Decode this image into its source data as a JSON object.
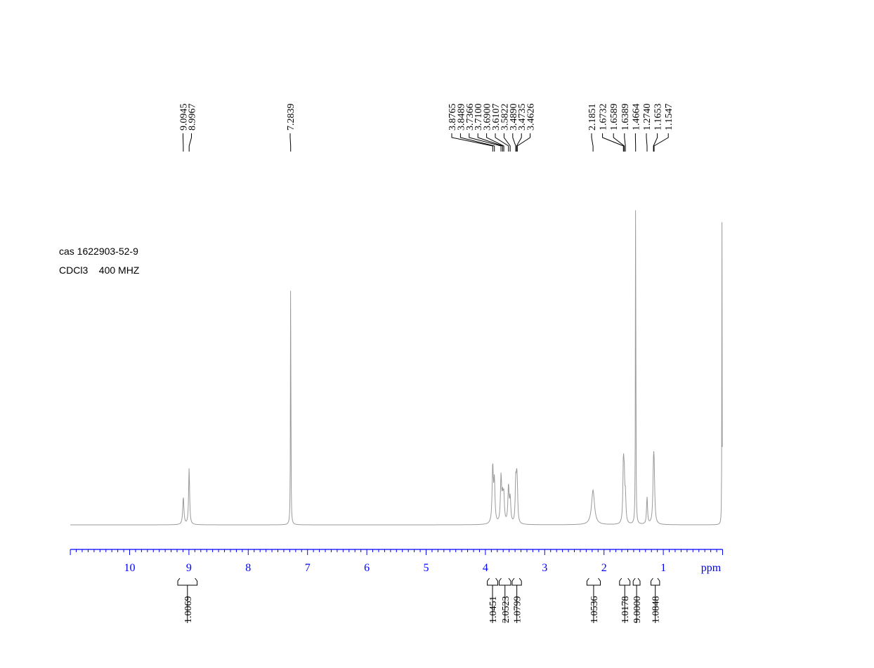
{
  "sample_info": {
    "line1": "cas 1622903-52-9",
    "line2": "CDCl3    400 MHZ"
  },
  "chart_data": {
    "type": "line",
    "title": "",
    "xlabel": "ppm",
    "ylabel": "",
    "x_direction": "reversed",
    "xlim": [
      11.0,
      0.0
    ],
    "ylim": [
      0,
      100
    ],
    "x_major_ticks": [
      10,
      9,
      8,
      7,
      6,
      5,
      4,
      3,
      2,
      1
    ],
    "x_tick_labels": [
      "10",
      "9",
      "8",
      "7",
      "6",
      "5",
      "4",
      "3",
      "2",
      "1"
    ],
    "x_minor_step": 0.1,
    "axis_color": "#0000ff",
    "trace_color": "#9a9a9a",
    "peak_labels": [
      "9.0945",
      "8.9967",
      "7.2839",
      "3.8765",
      "3.8489",
      "3.7366",
      "3.7100",
      "3.6900",
      "3.6107",
      "3.5822",
      "3.4890",
      "3.4735",
      "3.4626",
      "2.1851",
      "1.6732",
      "1.6589",
      "1.6389",
      "1.4664",
      "1.2740",
      "1.1653",
      "1.1547"
    ],
    "peaks": [
      {
        "ppm": 9.0945,
        "height": 7.5,
        "width": 0.012
      },
      {
        "ppm": 8.9967,
        "height": 15.5,
        "width": 0.01
      },
      {
        "ppm": 7.2839,
        "height": 75,
        "width": 0.004
      },
      {
        "ppm": 3.8765,
        "height": 15.5,
        "width": 0.012
      },
      {
        "ppm": 3.8489,
        "height": 11,
        "width": 0.012
      },
      {
        "ppm": 3.7366,
        "height": 12.5,
        "width": 0.012
      },
      {
        "ppm": 3.71,
        "height": 6,
        "width": 0.012
      },
      {
        "ppm": 3.69,
        "height": 7,
        "width": 0.012
      },
      {
        "ppm": 3.6107,
        "height": 10,
        "width": 0.012
      },
      {
        "ppm": 3.5822,
        "height": 6.5,
        "width": 0.012
      },
      {
        "ppm": 3.489,
        "height": 10.5,
        "width": 0.01
      },
      {
        "ppm": 3.4735,
        "height": 9,
        "width": 0.01
      },
      {
        "ppm": 3.4626,
        "height": 7.5,
        "width": 0.01
      },
      {
        "ppm": 2.1851,
        "height": 9.5,
        "width": 0.03
      },
      {
        "ppm": 1.6732,
        "height": 15.5,
        "width": 0.01
      },
      {
        "ppm": 1.6589,
        "height": 11,
        "width": 0.01
      },
      {
        "ppm": 1.6389,
        "height": 7,
        "width": 0.01
      },
      {
        "ppm": 1.4664,
        "height": 100,
        "width": 0.004
      },
      {
        "ppm": 1.274,
        "height": 7.5,
        "width": 0.01
      },
      {
        "ppm": 1.1653,
        "height": 12.5,
        "width": 0.012
      },
      {
        "ppm": 1.1547,
        "height": 11.5,
        "width": 0.012
      },
      {
        "ppm": 0.01,
        "height": 87,
        "width": 0.003
      }
    ],
    "integrals": [
      {
        "from": 9.2,
        "to": 8.85,
        "value": "1.0069"
      },
      {
        "from": 3.98,
        "to": 3.78,
        "value": "1.0451"
      },
      {
        "from": 3.78,
        "to": 3.56,
        "value": "2.0523"
      },
      {
        "from": 3.56,
        "to": 3.38,
        "value": "1.0799"
      },
      {
        "from": 2.3,
        "to": 2.05,
        "value": "1.0536"
      },
      {
        "from": 1.75,
        "to": 1.55,
        "value": "1.0178"
      },
      {
        "from": 1.52,
        "to": 1.38,
        "value": "9.0000"
      },
      {
        "from": 1.22,
        "to": 1.05,
        "value": "1.0848"
      }
    ]
  }
}
